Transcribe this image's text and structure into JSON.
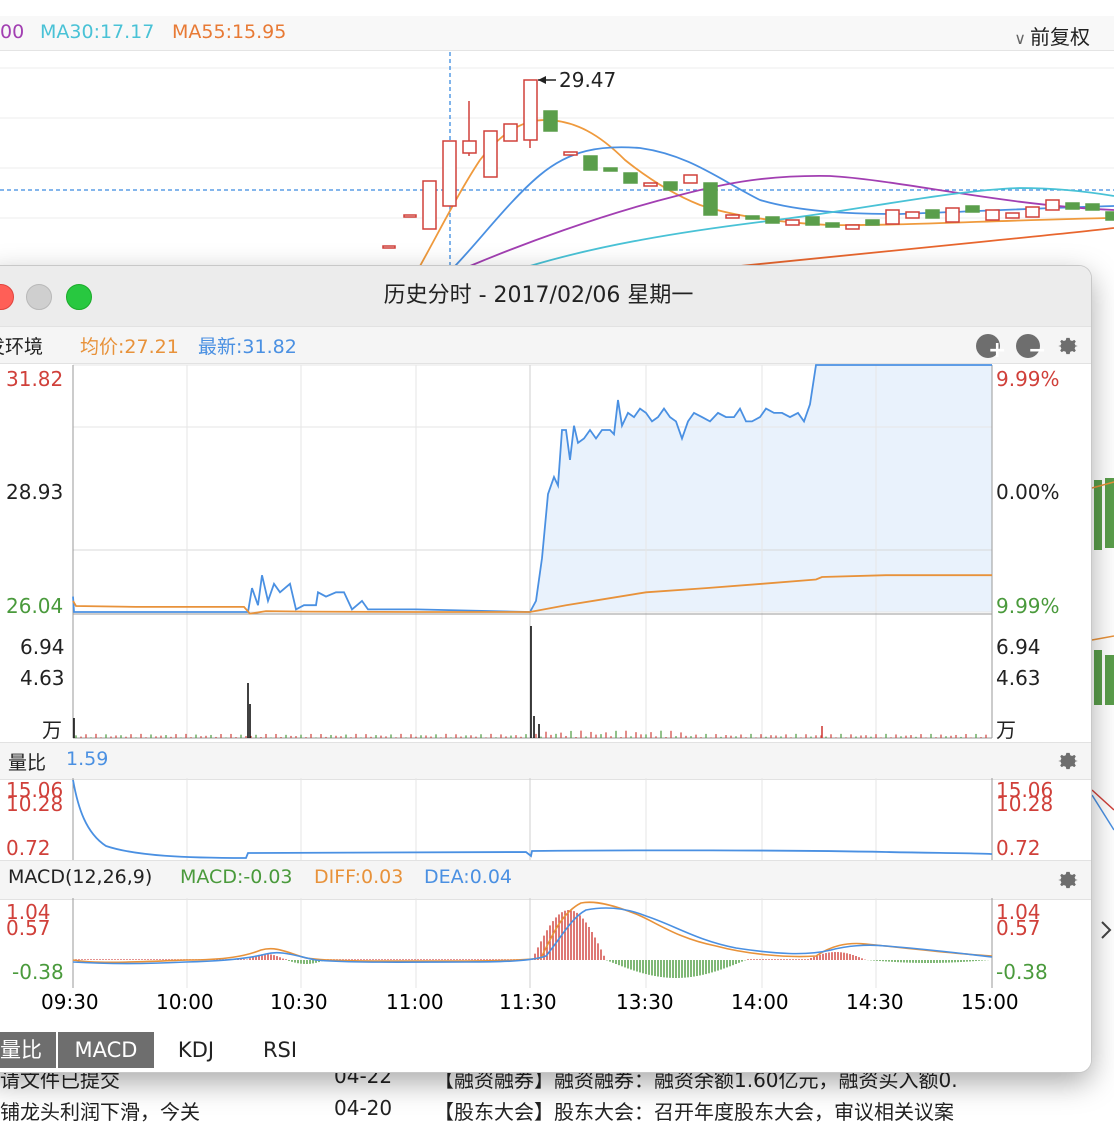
{
  "background": {
    "ma_items": [
      {
        "label": "00",
        "color": "#a23fb2"
      },
      {
        "label": "MA30:17.17",
        "color": "#49c2d6"
      },
      {
        "label": "MA55:15.95",
        "color": "#e87a35"
      }
    ],
    "fuquan_label": "前复权",
    "peak_label": "29.47",
    "news_rows": [
      {
        "left": "请文件已提交",
        "date": "04-22",
        "right": "【融资融券】融资融券：融资余额1.60亿元，融资买入额0."
      },
      {
        "left": "铺龙头利润下滑，今关",
        "date": "04-20",
        "right": "【股东大会】股东大会：召开年度股东大会，审议相关议案"
      }
    ]
  },
  "window": {
    "title": "历史分时 - 2017/02/06 星期一",
    "info_bar": {
      "name": "发环境",
      "avg": "均价:27.21",
      "latest": "最新:31.82"
    },
    "price_axis": {
      "top": "31.82",
      "mid": "28.93",
      "bottom": "26.04",
      "pct_top": "9.99%",
      "pct_mid": "0.00%",
      "pct_bottom": "9.99%"
    },
    "volume_axis": {
      "top": "6.94",
      "mid": "4.63",
      "unit": "万"
    },
    "liangbi_bar": {
      "label": "量比",
      "value": "1.59"
    },
    "liangbi_axis": {
      "top": "15.06",
      "mid": "10.28",
      "bottom": "0.72"
    },
    "macd_bar": {
      "label": "MACD(12,26,9)",
      "macd": "MACD:-0.03",
      "diff": "DIFF:0.03",
      "dea": "DEA:0.04"
    },
    "macd_axis": {
      "top": "1.04",
      "mid": "0.57",
      "bottom": "-0.38"
    },
    "time_labels": [
      "09:30",
      "10:00",
      "10:30",
      "11:00",
      "11:30",
      "13:30",
      "14:00",
      "14:30",
      "15:00"
    ],
    "tabs": [
      "量比",
      "MACD",
      "KDJ",
      "RSI"
    ],
    "active_tab": "MACD"
  },
  "chart_data": {
    "type": "line",
    "title": "历史分时 - 2017/02/06 星期一",
    "x": [
      "09:30",
      "10:00",
      "10:30",
      "11:00",
      "11:30",
      "13:30",
      "14:00",
      "14:30",
      "15:00"
    ],
    "series": [
      {
        "name": "最新",
        "color": "#4a90e2",
        "values": [
          26.04,
          26.04,
          26.04,
          26.04,
          26.04,
          30.6,
          30.6,
          31.82,
          31.82
        ]
      },
      {
        "name": "均价",
        "color": "#e8923a",
        "values": [
          26.5,
          26.3,
          26.2,
          26.2,
          26.2,
          26.8,
          27.0,
          27.2,
          27.21
        ]
      }
    ],
    "ylim": [
      26.04,
      31.82
    ],
    "grid": true
  }
}
